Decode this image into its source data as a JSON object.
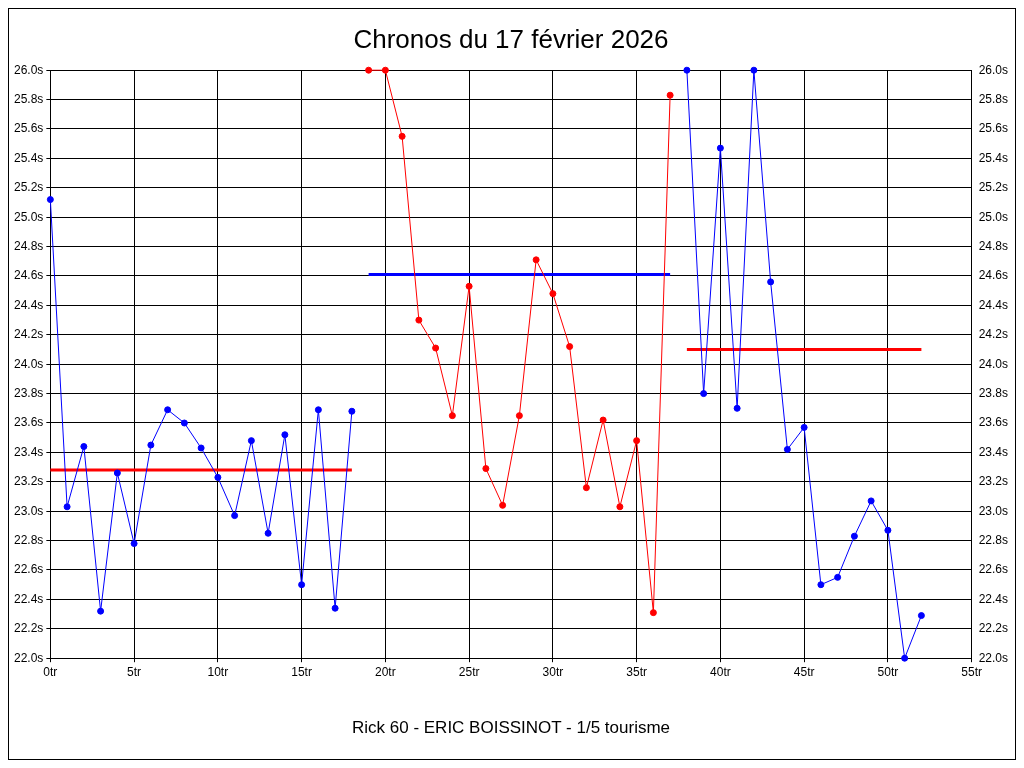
{
  "chart_data": {
    "type": "line",
    "title": "Chronos du 17 février 2026",
    "xlabel": "Rick 60 - ERIC BOISSINOT - 1/5 tourisme",
    "grid": true,
    "legend": false,
    "xlim": [
      0,
      55
    ],
    "xticks": [
      {
        "value": 0,
        "label": "0tr"
      },
      {
        "value": 5,
        "label": "5tr"
      },
      {
        "value": 10,
        "label": "10tr"
      },
      {
        "value": 15,
        "label": "15tr"
      },
      {
        "value": 20,
        "label": "20tr"
      },
      {
        "value": 25,
        "label": "25tr"
      },
      {
        "value": 30,
        "label": "30tr"
      },
      {
        "value": 35,
        "label": "35tr"
      },
      {
        "value": 40,
        "label": "40tr"
      },
      {
        "value": 45,
        "label": "45tr"
      },
      {
        "value": 50,
        "label": "50tr"
      },
      {
        "value": 55,
        "label": "55tr"
      }
    ],
    "ylim": [
      22,
      26
    ],
    "yticks": [
      {
        "value": 22,
        "label": "22.0s"
      },
      {
        "value": 22.2,
        "label": "22.2s"
      },
      {
        "value": 22.4,
        "label": "22.4s"
      },
      {
        "value": 22.6,
        "label": "22.6s"
      },
      {
        "value": 22.8,
        "label": "22.8s"
      },
      {
        "value": 23,
        "label": "23.0s"
      },
      {
        "value": 23.2,
        "label": "23.2s"
      },
      {
        "value": 23.4,
        "label": "23.4s"
      },
      {
        "value": 23.6,
        "label": "23.6s"
      },
      {
        "value": 23.8,
        "label": "23.8s"
      },
      {
        "value": 24,
        "label": "24.0s"
      },
      {
        "value": 24.2,
        "label": "24.2s"
      },
      {
        "value": 24.4,
        "label": "24.4s"
      },
      {
        "value": 24.6,
        "label": "24.6s"
      },
      {
        "value": 24.8,
        "label": "24.8s"
      },
      {
        "value": 25,
        "label": "25.0s"
      },
      {
        "value": 25.2,
        "label": "25.2s"
      },
      {
        "value": 25.4,
        "label": "25.4s"
      },
      {
        "value": 25.6,
        "label": "25.6s"
      },
      {
        "value": 25.8,
        "label": "25.8s"
      },
      {
        "value": 26,
        "label": "26.0s"
      }
    ],
    "y2lim": [
      22,
      26
    ],
    "y2ticks": [
      {
        "value": 22,
        "label": "22.0s"
      },
      {
        "value": 22.2,
        "label": "22.2s"
      },
      {
        "value": 22.4,
        "label": "22.4s"
      },
      {
        "value": 22.6,
        "label": "22.6s"
      },
      {
        "value": 22.8,
        "label": "22.8s"
      },
      {
        "value": 23,
        "label": "23.0s"
      },
      {
        "value": 23.2,
        "label": "23.2s"
      },
      {
        "value": 23.4,
        "label": "23.4s"
      },
      {
        "value": 23.6,
        "label": "23.6s"
      },
      {
        "value": 23.8,
        "label": "23.8s"
      },
      {
        "value": 24,
        "label": "24.0s"
      },
      {
        "value": 24.2,
        "label": "24.2s"
      },
      {
        "value": 24.4,
        "label": "24.4s"
      },
      {
        "value": 24.6,
        "label": "24.6s"
      },
      {
        "value": 24.8,
        "label": "24.8s"
      },
      {
        "value": 25,
        "label": "25.0s"
      },
      {
        "value": 25.2,
        "label": "25.2s"
      },
      {
        "value": 25.4,
        "label": "25.4s"
      },
      {
        "value": 25.6,
        "label": "25.6s"
      },
      {
        "value": 25.8,
        "label": "25.8s"
      },
      {
        "value": 26,
        "label": "26.0s"
      }
    ],
    "series": [
      {
        "marker": "circle",
        "color": "#0000ff",
        "x": [
          0,
          1,
          2,
          3,
          4,
          5,
          6,
          7,
          8,
          9,
          10,
          11,
          12,
          13,
          14,
          15,
          16,
          17,
          18
        ],
        "values": [
          25.12,
          23.03,
          23.44,
          22.32,
          23.26,
          22.78,
          23.45,
          23.69,
          23.6,
          23.43,
          23.23,
          22.97,
          23.48,
          22.85,
          23.52,
          22.5,
          23.69,
          22.34,
          23.68
        ]
      },
      {
        "marker": "circle",
        "color": "#ff0000",
        "x": [
          19,
          20,
          21,
          22,
          23,
          24,
          25,
          26,
          27,
          28,
          29,
          30,
          31,
          32,
          33,
          34,
          35,
          36,
          37
        ],
        "values": [
          26,
          26,
          25.55,
          24.3,
          24.11,
          23.65,
          24.53,
          23.29,
          23.04,
          23.65,
          24.71,
          24.48,
          24.12,
          23.16,
          23.62,
          23.03,
          23.48,
          22.31,
          25.83
        ]
      },
      {
        "marker": "circle",
        "color": "#0000ff",
        "x": [
          38,
          39,
          40,
          41,
          42,
          43,
          44,
          45,
          46,
          47,
          48,
          49,
          50,
          51,
          52
        ],
        "values": [
          26,
          23.8,
          25.47,
          23.7,
          26,
          24.56,
          23.42,
          23.57,
          22.5,
          22.55,
          22.83,
          23.07,
          22.87,
          22,
          22.29
        ]
      },
      {
        "marker": "none",
        "color": "#ff0000",
        "x": [
          0,
          18
        ],
        "values": [
          23.28,
          23.28
        ]
      },
      {
        "marker": "none",
        "color": "#0000ff",
        "x": [
          19,
          37
        ],
        "values": [
          24.61,
          24.61
        ]
      },
      {
        "marker": "none",
        "color": "#ff0000",
        "x": [
          38,
          52
        ],
        "values": [
          24.1,
          24.1
        ]
      }
    ]
  }
}
